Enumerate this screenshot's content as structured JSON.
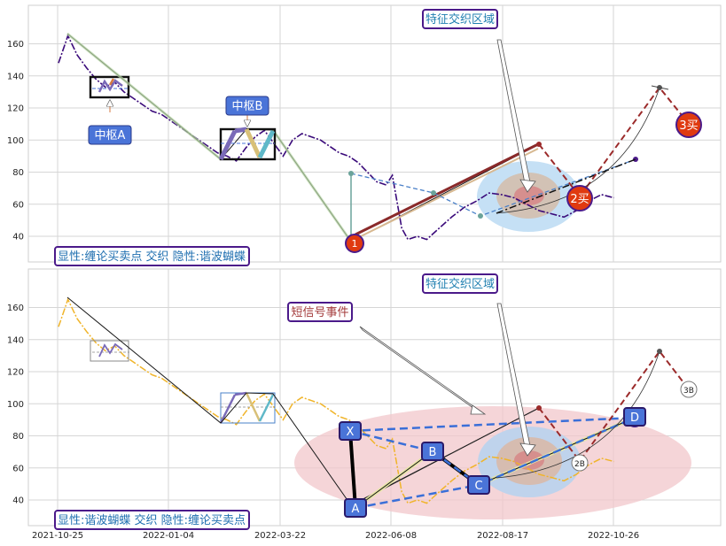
{
  "chart_data": [
    {
      "type": "line",
      "panel": "top",
      "ylim": [
        24,
        184
      ],
      "yticks": [
        40,
        60,
        80,
        100,
        120,
        140,
        160
      ],
      "grid": true,
      "price_series": [
        [
          0,
          148
        ],
        [
          3,
          165
        ],
        [
          6,
          153
        ],
        [
          9,
          145
        ],
        [
          12,
          138
        ],
        [
          15,
          133
        ],
        [
          18,
          136
        ],
        [
          21,
          130
        ],
        [
          24,
          126
        ],
        [
          27,
          122
        ],
        [
          30,
          118
        ],
        [
          33,
          116
        ],
        [
          36,
          112
        ],
        [
          39,
          108
        ],
        [
          42,
          104
        ],
        [
          45,
          100
        ],
        [
          48,
          96
        ],
        [
          51,
          92
        ],
        [
          54,
          90
        ],
        [
          57,
          87
        ],
        [
          60,
          95
        ],
        [
          63,
          102
        ],
        [
          66,
          106
        ],
        [
          69,
          98
        ],
        [
          72,
          90
        ],
        [
          75,
          100
        ],
        [
          78,
          104
        ],
        [
          81,
          102
        ],
        [
          84,
          100
        ],
        [
          87,
          96
        ],
        [
          90,
          92
        ],
        [
          93,
          90
        ],
        [
          96,
          86
        ],
        [
          99,
          80
        ],
        [
          102,
          74
        ],
        [
          105,
          72
        ],
        [
          107,
          78
        ],
        [
          110,
          45
        ],
        [
          112,
          38
        ],
        [
          115,
          40
        ],
        [
          118,
          38
        ],
        [
          122,
          45
        ],
        [
          126,
          52
        ],
        [
          130,
          58
        ],
        [
          134,
          62
        ],
        [
          138,
          67
        ],
        [
          142,
          66
        ],
        [
          146,
          64
        ],
        [
          150,
          60
        ],
        [
          154,
          56
        ],
        [
          158,
          54
        ],
        [
          162,
          52
        ],
        [
          166,
          56
        ],
        [
          170,
          62
        ],
        [
          174,
          66
        ],
        [
          178,
          64
        ]
      ],
      "zigzag": [
        [
          3,
          165
        ],
        [
          57,
          87
        ],
        [
          78,
          104
        ],
        [
          110,
          36
        ],
        [
          165,
          96
        ]
      ],
      "buy_labels": [
        "1",
        "2买",
        "3买"
      ],
      "boxes": [
        "中枢A",
        "中枢B"
      ],
      "annotation": "特征交织区域",
      "legend_text": "显性:缠论买卖点 交织 隐性:谐波蝴蝶"
    },
    {
      "type": "line",
      "panel": "bottom",
      "ylim": [
        24,
        184
      ],
      "yticks": [
        40,
        60,
        80,
        100,
        120,
        140,
        160
      ],
      "xtick_labels": [
        "2021-10-25",
        "2022-01-04",
        "2022-03-22",
        "2022-06-08",
        "2022-08-17",
        "2022-10-26"
      ],
      "grid": true,
      "harmonic_points": [
        {
          "label": "X",
          "x": 105,
          "y": 84
        },
        {
          "label": "A",
          "x": 110,
          "y": 36
        },
        {
          "label": "B",
          "x": 137,
          "y": 67
        },
        {
          "label": "C",
          "x": 152,
          "y": 52
        },
        {
          "label": "D",
          "x": 190,
          "y": 87
        }
      ],
      "signal_labels": [
        "2B",
        "3B"
      ],
      "annotations": [
        "特征交织区域",
        "短信号事件"
      ],
      "legend_text": "显性:谐波蝴蝶 交织 隐性:缠论买卖点"
    }
  ],
  "labels": {
    "top_legend": "显性:缠论买卖点 交织 隐性:谐波蝴蝶",
    "bottom_legend": "显性:谐波蝴蝶 交织 隐性:缠论买卖点",
    "zone_top": "特征交织区域",
    "zone_bottom": "特征交织区域",
    "short_event": "短信号事件",
    "pivot_a": "中枢A",
    "pivot_b": "中枢B",
    "buy1": "1",
    "buy2": "2买",
    "buy3": "3买",
    "sig2b": "2B",
    "sig3b": "3B",
    "pt_x": "X",
    "pt_a": "A",
    "pt_b": "B",
    "pt_c": "C",
    "pt_d": "D"
  },
  "colors": {
    "price_top": "#3a0a7a",
    "price_bottom": "#f0b429",
    "legend_border": "#4b1a8a",
    "legend_text": "#1f6fb0",
    "label_blue": "#4a74d8",
    "buy_red": "#e03a10",
    "dash_red": "#9b2a2a",
    "zone_blue": "#a9d0ef",
    "zone_pink": "#f2c7cb"
  }
}
